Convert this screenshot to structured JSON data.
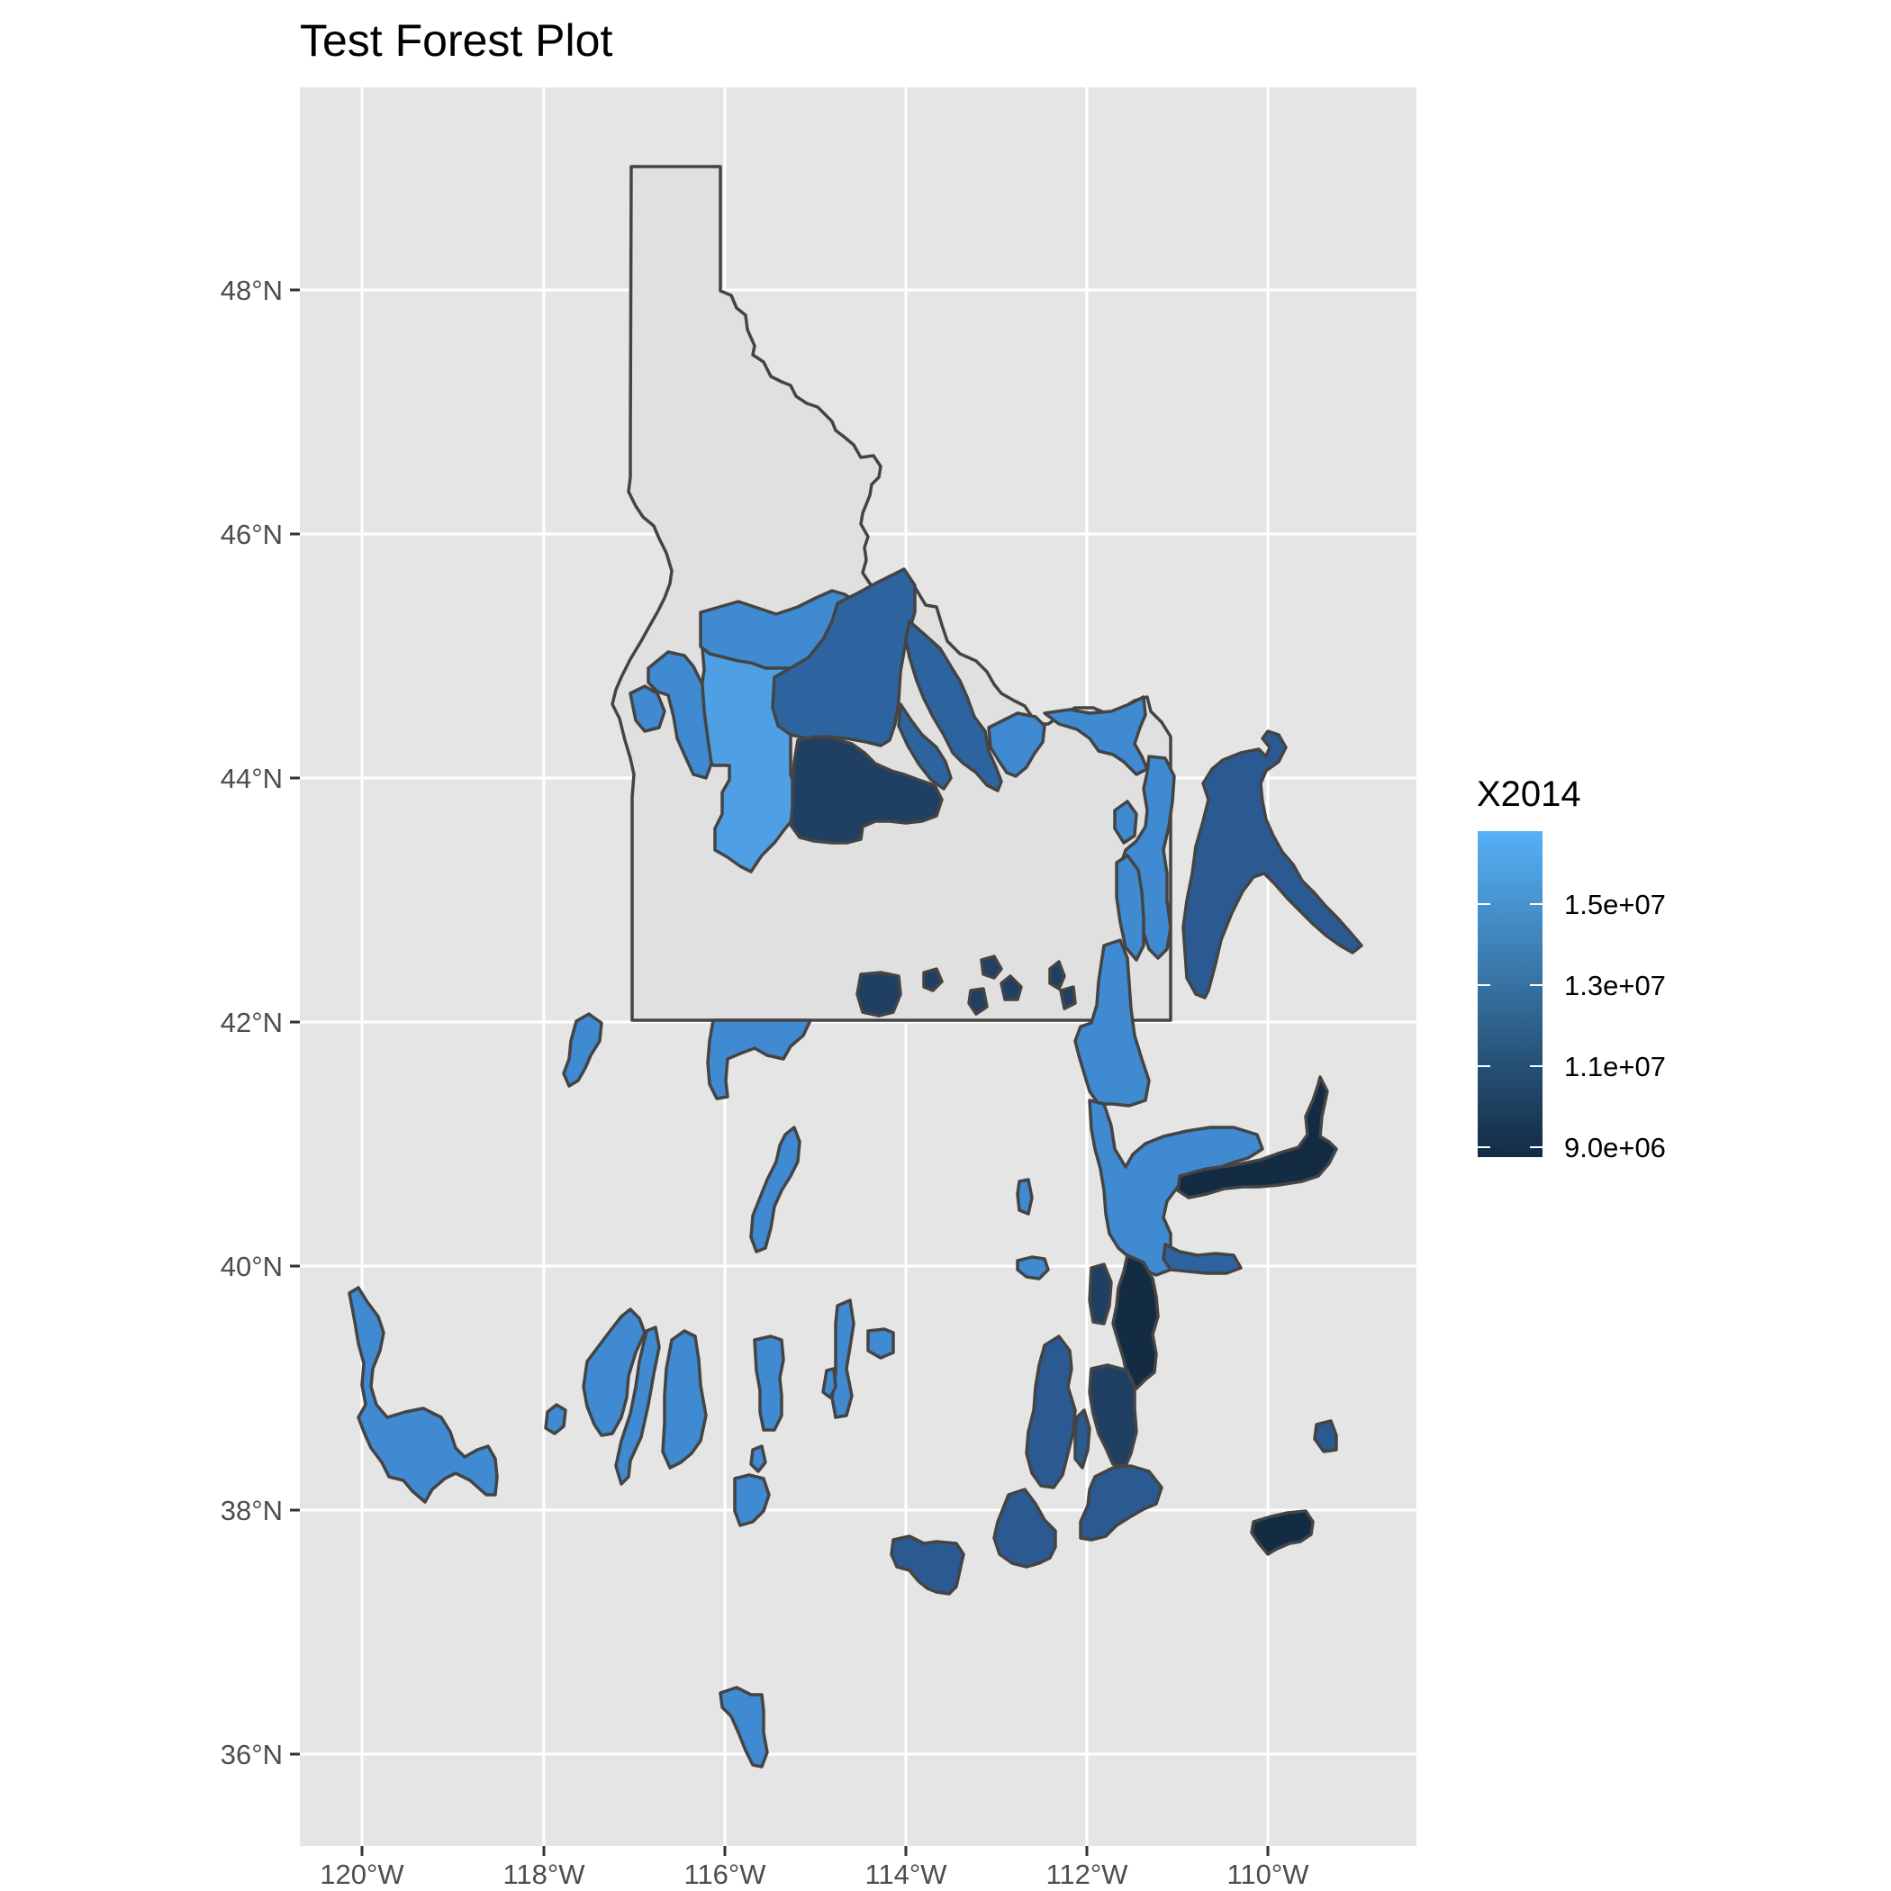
{
  "title": "Test Forest Plot",
  "x_axis": {
    "ticks": [
      "120°W",
      "118°W",
      "116°W",
      "114°W",
      "112°W",
      "110°W"
    ]
  },
  "y_axis": {
    "ticks": [
      "36°N",
      "38°N",
      "40°N",
      "42°N",
      "44°N",
      "46°N",
      "48°N"
    ]
  },
  "legend": {
    "title": "X2014",
    "labels": [
      "1.5e+07",
      "1.3e+07",
      "1.1e+07",
      "9.0e+06"
    ],
    "low_color": "#132b43",
    "high_color": "#56b1f7"
  },
  "colors": {
    "panel": "#e5e5e5",
    "state_fill": "#e0e0e0",
    "outline": "#444444"
  },
  "chart_data": {
    "type": "choropleth",
    "xlim": [
      -120.7,
      -108.3
    ],
    "ylim": [
      35.3,
      49.7
    ],
    "fill_variable": "X2014",
    "outline": "Idaho state boundary",
    "regions_X2014_approx": [
      {
        "lon": -116.0,
        "lat": 43.9,
        "value": 16500000
      },
      {
        "lon": -115.6,
        "lat": 45.0,
        "value": 15500000
      },
      {
        "lon": -114.6,
        "lat": 44.9,
        "value": 13000000
      },
      {
        "lon": -114.5,
        "lat": 43.8,
        "value": 11000000
      },
      {
        "lon": -110.7,
        "lat": 43.2,
        "value": 12500000
      },
      {
        "lon": -110.2,
        "lat": 40.7,
        "value": 9000000
      },
      {
        "lon": -111.5,
        "lat": 39.2,
        "value": 9000000
      },
      {
        "lon": -112.2,
        "lat": 38.6,
        "value": 11500000
      },
      {
        "lon": -119.3,
        "lat": 38.6,
        "value": 16000000
      },
      {
        "lon": -115.8,
        "lat": 36.2,
        "value": 16000000
      }
    ]
  }
}
